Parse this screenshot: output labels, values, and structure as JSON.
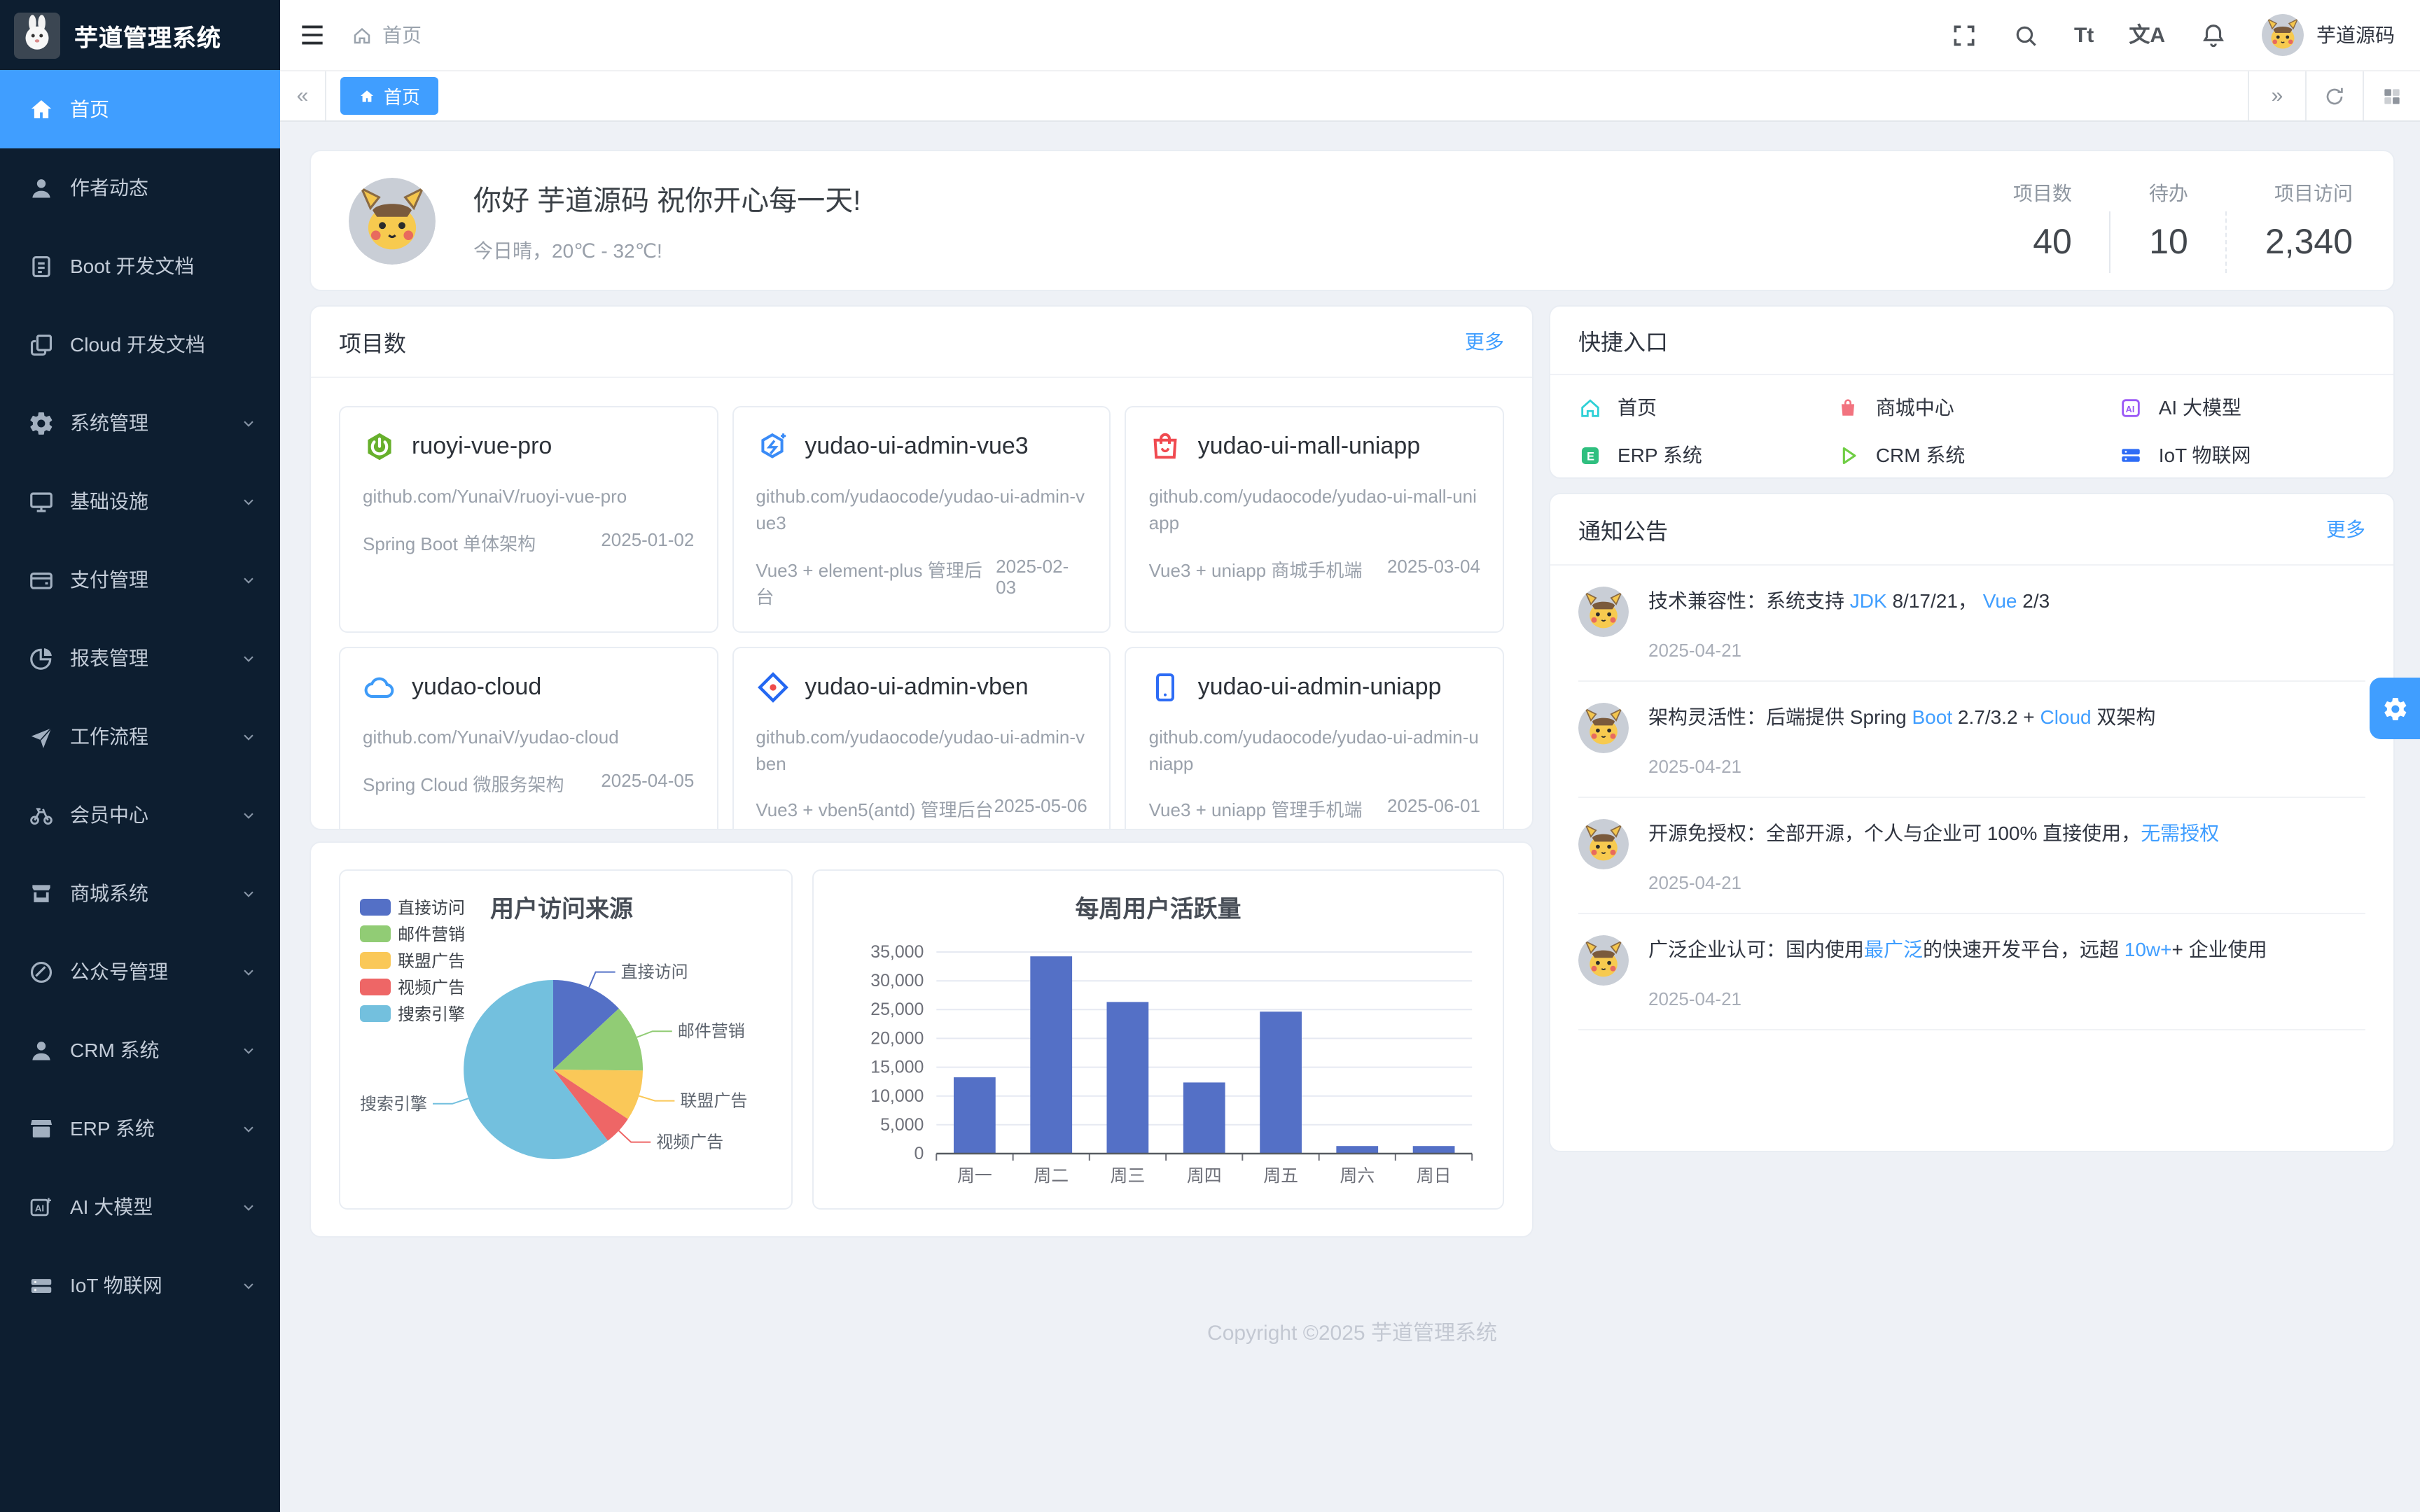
{
  "theme": {
    "accent": "#409eff",
    "sidebar_bg": "#0d1e30",
    "page_bg": "#eef1f6",
    "pie_colors": [
      "#5470c6",
      "#91cc75",
      "#fac858",
      "#ee6666",
      "#73c0de"
    ],
    "bar_color": "#5470c6"
  },
  "app": {
    "logo_title": "芋道管理系统",
    "footer": "Copyright ©2025 芋道管理系统"
  },
  "sidebar": {
    "items": [
      {
        "label": "首页",
        "icon": "home",
        "active": true,
        "chevron": false
      },
      {
        "label": "作者动态",
        "icon": "user",
        "active": false,
        "chevron": false
      },
      {
        "label": "Boot 开发文档",
        "icon": "doc",
        "active": false,
        "chevron": false
      },
      {
        "label": "Cloud 开发文档",
        "icon": "docs",
        "active": false,
        "chevron": false
      },
      {
        "label": "系统管理",
        "icon": "gear",
        "active": false,
        "chevron": true
      },
      {
        "label": "基础设施",
        "icon": "monitor",
        "active": false,
        "chevron": true
      },
      {
        "label": "支付管理",
        "icon": "wallet",
        "active": false,
        "chevron": true
      },
      {
        "label": "报表管理",
        "icon": "pie",
        "active": false,
        "chevron": true
      },
      {
        "label": "工作流程",
        "icon": "flow",
        "active": false,
        "chevron": true
      },
      {
        "label": "会员中心",
        "icon": "bike",
        "active": false,
        "chevron": true
      },
      {
        "label": "商城系统",
        "icon": "shop",
        "active": false,
        "chevron": true
      },
      {
        "label": "公众号管理",
        "icon": "slash",
        "active": false,
        "chevron": true
      },
      {
        "label": "CRM 系统",
        "icon": "user",
        "active": false,
        "chevron": true
      },
      {
        "label": "ERP 系统",
        "icon": "store",
        "active": false,
        "chevron": true
      },
      {
        "label": "AI 大模型",
        "icon": "ai",
        "active": false,
        "chevron": true
      },
      {
        "label": "IoT 物联网",
        "icon": "iot",
        "active": false,
        "chevron": true
      }
    ]
  },
  "header": {
    "breadcrumb_home": "首页",
    "user": "芋道源码",
    "icons": [
      {
        "name": "fullscreen",
        "glyph": "svg"
      },
      {
        "name": "search",
        "glyph": "svg"
      },
      {
        "name": "font-size",
        "glyph": "Tt"
      },
      {
        "name": "locale",
        "glyph": "文A"
      },
      {
        "name": "notification",
        "glyph": "svg"
      }
    ]
  },
  "tabbar": {
    "tabs": [
      {
        "label": "首页",
        "active": true
      }
    ]
  },
  "welcome": {
    "greeting": "你好 芋道源码 祝你开心每一天!",
    "weather": "今日晴，20℃ - 32℃!",
    "stats": [
      {
        "label": "项目数",
        "value": "40"
      },
      {
        "label": "待办",
        "value": "10"
      },
      {
        "label": "项目访问",
        "value": "2,340"
      }
    ]
  },
  "projects": {
    "title": "项目数",
    "more": "更多",
    "cards": [
      {
        "name": "ruoyi-vue-pro",
        "repo": "github.com/YunaiV/ruoyi-vue-pro",
        "desc": "Spring Boot 单体架构",
        "date": "2025-01-02",
        "icon": "spring"
      },
      {
        "name": "yudao-ui-admin-vue3",
        "repo": "github.com/yudaocode/yudao-ui-admin-vue3",
        "desc": "Vue3 + element-plus 管理后台",
        "date": "2025-02-03",
        "icon": "hex"
      },
      {
        "name": "yudao-ui-mall-uniapp",
        "repo": "github.com/yudaocode/yudao-ui-mall-uniapp",
        "desc": "Vue3 + uniapp 商城手机端",
        "date": "2025-03-04",
        "icon": "bag"
      },
      {
        "name": "yudao-cloud",
        "repo": "github.com/YunaiV/yudao-cloud",
        "desc": "Spring Cloud 微服务架构",
        "date": "2025-04-05",
        "icon": "cloud"
      },
      {
        "name": "yudao-ui-admin-vben",
        "repo": "github.com/yudaocode/yudao-ui-admin-vben",
        "desc": "Vue3 + vben5(antd) 管理后台",
        "date": "2025-05-06",
        "icon": "diamond"
      },
      {
        "name": "yudao-ui-admin-uniapp",
        "repo": "github.com/yudaocode/yudao-ui-admin-uniapp",
        "desc": "Vue3 + uniapp 管理手机端",
        "date": "2025-06-01",
        "icon": "phone"
      }
    ]
  },
  "shortcuts": {
    "title": "快捷入口",
    "items": [
      {
        "label": "首页",
        "icon": "qhome",
        "color": "#2fd0d6"
      },
      {
        "label": "商城中心",
        "icon": "qmall",
        "color": "#f2737f"
      },
      {
        "label": "AI 大模型",
        "icon": "qai",
        "color": "#9b59f6"
      },
      {
        "label": "ERP 系统",
        "icon": "qerp",
        "color": "#2fbf7f"
      },
      {
        "label": "CRM 系统",
        "icon": "qcrm",
        "color": "#6fce44"
      },
      {
        "label": "IoT 物联网",
        "icon": "qiot",
        "color": "#2e6cf6"
      }
    ]
  },
  "notices": {
    "title": "通知公告",
    "more": "更多",
    "items": [
      {
        "date": "2025-04-21",
        "segments": [
          {
            "t": "技术兼容性：系统支持 "
          },
          {
            "t": "JDK",
            "hl": true
          },
          {
            "t": " 8/17/21， "
          },
          {
            "t": "Vue",
            "hl": true
          },
          {
            "t": " 2/3"
          }
        ]
      },
      {
        "date": "2025-04-21",
        "segments": [
          {
            "t": "架构灵活性：后端提供 Spring "
          },
          {
            "t": "Boot",
            "hl": true
          },
          {
            "t": " 2.7/3.2 + "
          },
          {
            "t": "Cloud",
            "hl": true
          },
          {
            "t": " 双架构"
          }
        ]
      },
      {
        "date": "2025-04-21",
        "segments": [
          {
            "t": "开源免授权：全部开源，个人与企业可 100% 直接使用，"
          },
          {
            "t": "无需授权",
            "hl": true
          }
        ]
      },
      {
        "date": "2025-04-21",
        "segments": [
          {
            "t": "广泛企业认可：国内使用"
          },
          {
            "t": "最广泛",
            "hl": true
          },
          {
            "t": "的快速开发平台，远超 "
          },
          {
            "t": "10w+",
            "hl": true
          },
          {
            "t": "+ 企业使用"
          }
        ]
      }
    ]
  },
  "chart_data": [
    {
      "type": "pie",
      "title": "用户访问来源",
      "legend_position": "left",
      "legend": [
        "直接访问",
        "邮件营销",
        "联盟广告",
        "视频广告",
        "搜索引擎"
      ],
      "series": [
        {
          "name": "直接访问",
          "value": 335
        },
        {
          "name": "邮件营销",
          "value": 310
        },
        {
          "name": "联盟广告",
          "value": 234
        },
        {
          "name": "视频广告",
          "value": 135
        },
        {
          "name": "搜索引擎",
          "value": 1548
        }
      ],
      "colors": [
        "#5470c6",
        "#91cc75",
        "#fac858",
        "#ee6666",
        "#73c0de"
      ]
    },
    {
      "type": "bar",
      "title": "每周用户活跃量",
      "categories": [
        "周一",
        "周二",
        "周三",
        "周四",
        "周五",
        "周六",
        "周日"
      ],
      "values": [
        13253,
        34235,
        26321,
        12340,
        24643,
        1322,
        1324
      ],
      "color": "#5470c6",
      "ylabel": "",
      "xlabel": "",
      "ylim": [
        0,
        35000
      ],
      "ytick_step": 5000,
      "grid": true
    }
  ]
}
